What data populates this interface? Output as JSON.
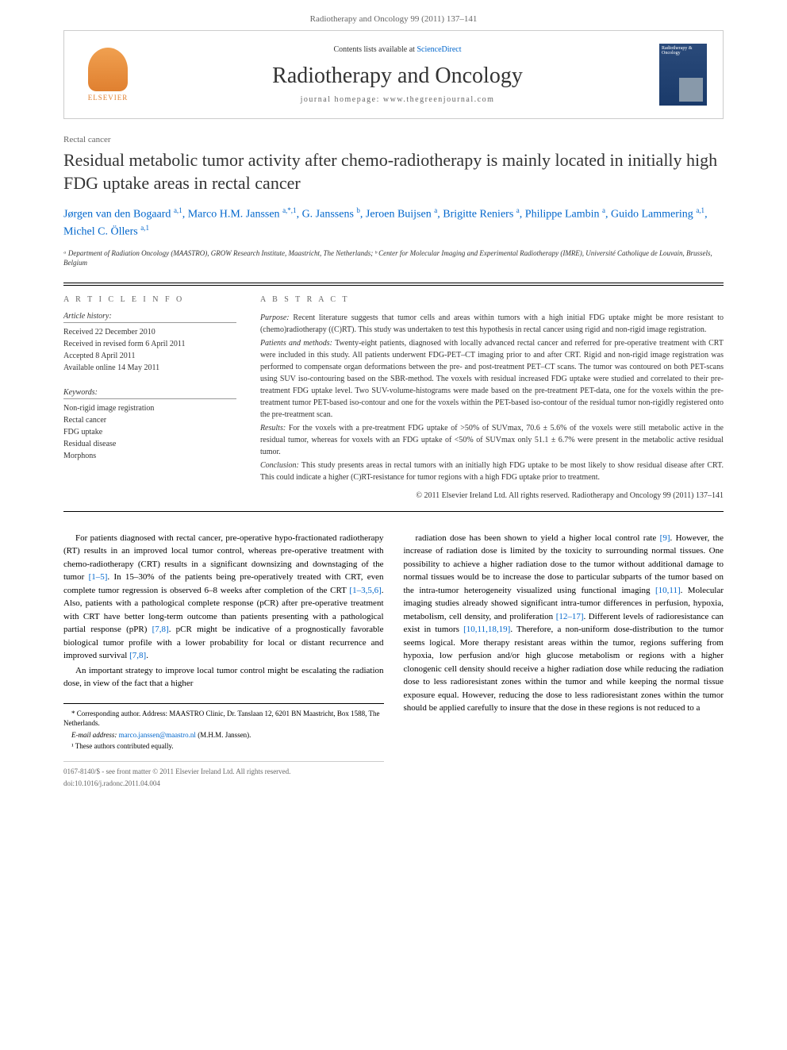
{
  "header": {
    "citation": "Radiotherapy and Oncology 99 (2011) 137–141",
    "contents_prefix": "Contents lists available at ",
    "contents_link": "ScienceDirect",
    "journal_name": "Radiotherapy and Oncology",
    "homepage_prefix": "journal homepage: ",
    "homepage_url": "www.thegreenjournal.com",
    "elsevier": "ELSEVIER",
    "cover_title": "Radiotherapy & Oncology"
  },
  "article": {
    "section": "Rectal cancer",
    "title": "Residual metabolic tumor activity after chemo-radiotherapy is mainly located in initially high FDG uptake areas in rectal cancer",
    "authors_html": "Jørgen van den Bogaard <sup>a,1</sup>, Marco H.M. Janssen <sup>a,*,1</sup>, G. Janssens <sup>b</sup>, Jeroen Buijsen <sup>a</sup>, Brigitte Reniers <sup>a</sup>, Philippe Lambin <sup>a</sup>, Guido Lammering <sup>a,1</sup>, Michel C. Öllers <sup>a,1</sup>",
    "affiliations": "ᵃ Department of Radiation Oncology (MAASTRO), GROW Research Institute, Maastricht, The Netherlands; ᵇ Center for Molecular Imaging and Experimental Radiotherapy (IMRE), Université Catholique de Louvain, Brussels, Belgium"
  },
  "info": {
    "heading": "A R T I C L E   I N F O",
    "history_label": "Article history:",
    "history": "Received 22 December 2010\nReceived in revised form 6 April 2011\nAccepted 8 April 2011\nAvailable online 14 May 2011",
    "keywords_label": "Keywords:",
    "keywords": "Non-rigid image registration\nRectal cancer\nFDG uptake\nResidual disease\nMorphons"
  },
  "abstract": {
    "heading": "A B S T R A C T",
    "purpose_label": "Purpose:",
    "purpose": " Recent literature suggests that tumor cells and areas within tumors with a high initial FDG uptake might be more resistant to (chemo)radiotherapy ((C)RT). This study was undertaken to test this hypothesis in rectal cancer using rigid and non-rigid image registration.",
    "methods_label": "Patients and methods:",
    "methods": " Twenty-eight patients, diagnosed with locally advanced rectal cancer and referred for pre-operative treatment with CRT were included in this study. All patients underwent FDG-PET–CT imaging prior to and after CRT. Rigid and non-rigid image registration was performed to compensate organ deformations between the pre- and post-treatment PET–CT scans. The tumor was contoured on both PET-scans using SUV iso-contouring based on the SBR-method. The voxels with residual increased FDG uptake were studied and correlated to their pre-treatment FDG uptake level. Two SUV-volume-histograms were made based on the pre-treatment PET-data, one for the voxels within the pre-treatment tumor PET-based iso-contour and one for the voxels within the PET-based iso-contour of the residual tumor non-rigidly registered onto the pre-treatment scan.",
    "results_label": "Results:",
    "results": " For the voxels with a pre-treatment FDG uptake of >50% of SUVmax, 70.6 ± 5.6% of the voxels were still metabolic active in the residual tumor, whereas for voxels with an FDG uptake of <50% of SUVmax only 51.1 ± 6.7% were present in the metabolic active residual tumor.",
    "conclusion_label": "Conclusion:",
    "conclusion": " This study presents areas in rectal tumors with an initially high FDG uptake to be most likely to show residual disease after CRT. This could indicate a higher (C)RT-resistance for tumor regions with a high FDG uptake prior to treatment.",
    "copyright": "© 2011 Elsevier Ireland Ltd. All rights reserved. Radiotherapy and Oncology 99 (2011) 137–141"
  },
  "body": {
    "col1_p1": "For patients diagnosed with rectal cancer, pre-operative hypo-fractionated radiotherapy (RT) results in an improved local tumor control, whereas pre-operative treatment with chemo-radiotherapy (CRT) results in a significant downsizing and downstaging of the tumor [1–5]. In 15–30% of the patients being pre-operatively treated with CRT, even complete tumor regression is observed 6–8 weeks after completion of the CRT [1–3,5,6]. Also, patients with a pathological complete response (pCR) after pre-operative treatment with CRT have better long-term outcome than patients presenting with a pathological partial response (pPR) [7,8]. pCR might be indicative of a prognostically favorable biological tumor profile with a lower probability for local or distant recurrence and improved survival [7,8].",
    "col1_p2": "An important strategy to improve local tumor control might be escalating the radiation dose, in view of the fact that a higher",
    "col2_p1": "radiation dose has been shown to yield a higher local control rate [9]. However, the increase of radiation dose is limited by the toxicity to surrounding normal tissues. One possibility to achieve a higher radiation dose to the tumor without additional damage to normal tissues would be to increase the dose to particular subparts of the tumor based on the intra-tumor heterogeneity visualized using functional imaging [10,11]. Molecular imaging studies already showed significant intra-tumor differences in perfusion, hypoxia, metabolism, cell density, and proliferation [12–17]. Different levels of radioresistance can exist in tumors [10,11,18,19]. Therefore, a non-uniform dose-distribution to the tumor seems logical. More therapy resistant areas within the tumor, regions suffering from hypoxia, low perfusion and/or high glucose metabolism or regions with a higher clonogenic cell density should receive a higher radiation dose while reducing the radiation dose to less radioresistant zones within the tumor and while keeping the normal tissue exposure equal. However, reducing the dose to less radioresistant zones within the tumor should be applied carefully to insure that the dose in these regions is not reduced to a"
  },
  "footnotes": {
    "corr": "* Corresponding author. Address: MAASTRO Clinic, Dr. Tanslaan 12, 6201 BN Maastricht, Box 1588, The Netherlands.",
    "email_label": "E-mail address: ",
    "email": "marco.janssen@maastro.nl",
    "email_suffix": " (M.H.M. Janssen).",
    "note1": "¹ These authors contributed equally."
  },
  "footer": {
    "line1": "0167-8140/$ - see front matter © 2011 Elsevier Ireland Ltd. All rights reserved.",
    "line2": "doi:10.1016/j.radonc.2011.04.004"
  }
}
